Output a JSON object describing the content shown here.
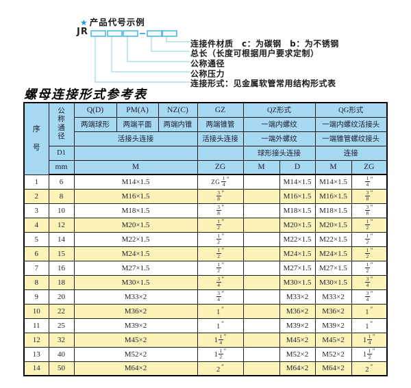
{
  "colors": {
    "header_blue": "#a8d9f2",
    "row_yellow": "#fbf3b8",
    "line_cyan": "#9bd7e8",
    "box_cyan": "#45b3e0",
    "star_blue": "#1e9ad6",
    "ink": "#1c1c30"
  },
  "diagram": {
    "star": "★",
    "heading": "产品代号示例",
    "prefix": "JR",
    "labels": [
      "连接件材质　c：为碳钢　b：为不锈钢",
      "总长（长度可根据用户要求定制）",
      "公称通径",
      "公称压力",
      "连接形式：见金属软管常用结构形式表"
    ]
  },
  "table": {
    "title": "螺母连接形式参考表",
    "header": {
      "seq": "序号",
      "dn": "公称通径",
      "d1": "D1",
      "mm": "mm",
      "forms": {
        "q": "Q(D)",
        "pm": "PM(A)",
        "nz": "NZ(C)",
        "gz": "GZ",
        "qz": "QZ形式",
        "qg": "QG形式"
      },
      "subs": {
        "q": "两端球形",
        "pm": "两端平面",
        "nz": "两端内锥",
        "gz": "两端锥管",
        "qz1": "一端内螺纹",
        "qg1": "一端内螺纹活接头"
      },
      "row3": {
        "union": "活接头连接",
        "gz": "活接头连接",
        "qz2": "一端外螺纹",
        "qg2": "一端锥管螺纹接头"
      },
      "row4": {
        "qz3": "球形接头连接",
        "qg3": "连接"
      },
      "row5": {
        "m1": "M",
        "zg1": "ZG",
        "m2": "M",
        "d": "D",
        "m3": "M",
        "zg2": "ZG"
      }
    },
    "rows": [
      {
        "no": "1",
        "dn": "6",
        "m": "M14×1.5",
        "gz": "ZG 1/4″",
        "qz_m": "",
        "qz_d": "M14×1.5",
        "qg_m": "M14×1.5",
        "qg_zg": "1/4″"
      },
      {
        "no": "2",
        "dn": "8",
        "m": "M16×1.5",
        "gz": "3/8″",
        "qz_m": "",
        "qz_d": "M16×1.5",
        "qg_m": "M16×1.5",
        "qg_zg": "3/8″"
      },
      {
        "no": "3",
        "dn": "10",
        "m": "M18×1.5",
        "gz": "3/8″",
        "qz_m": "",
        "qz_d": "M18×1.5",
        "qg_m": "M18×1.5",
        "qg_zg": "3/8″"
      },
      {
        "no": "4",
        "dn": "12",
        "m": "M20×1.5",
        "gz": "1/2″",
        "qz_m": "",
        "qz_d": "M20×1.5",
        "qg_m": "M20×1.5",
        "qg_zg": "1/2″"
      },
      {
        "no": "5",
        "dn": "14",
        "m": "M22×1.5",
        "gz": "1/2″",
        "qz_m": "",
        "qz_d": "M22×1.5",
        "qg_m": "M22×1.5",
        "qg_zg": "1/2″"
      },
      {
        "no": "6",
        "dn": "15",
        "m": "M24×1.5",
        "gz": "1/2″",
        "qz_m": "",
        "qz_d": "M24×1.5",
        "qg_m": "M24×1.5",
        "qg_zg": "1/2″"
      },
      {
        "no": "7",
        "dn": "16",
        "m": "M27×1.5",
        "gz": "1/2″",
        "qz_m": "",
        "qz_d": "M27×1.5",
        "qg_m": "M27×1.5",
        "qg_zg": "1/2″"
      },
      {
        "no": "8",
        "dn": "18",
        "m": "M30×1.5",
        "gz": "3/4″",
        "qz_m": "",
        "qz_d": "M30×1.5",
        "qg_m": "M30×1.5",
        "qg_zg": "3/4″"
      },
      {
        "no": "9",
        "dn": "20",
        "m": "M33×2",
        "gz": "3/4″",
        "qz_m": "",
        "qz_d": "M33×2",
        "qg_m": "M33×2",
        "qg_zg": "3/4″"
      },
      {
        "no": "10",
        "dn": "22",
        "m": "M36×2",
        "gz": "1″",
        "qz_m": "",
        "qz_d": "M36×2",
        "qg_m": "M36×2",
        "qg_zg": "1″"
      },
      {
        "no": "11",
        "dn": "25",
        "m": "M39×2",
        "gz": "1″",
        "qz_m": "",
        "qz_d": "M39×2",
        "qg_m": "M39×2",
        "qg_zg": "1″"
      },
      {
        "no": "12",
        "dn": "32",
        "m": "M45×2",
        "gz": "1 1/4″",
        "qz_m": "",
        "qz_d": "M45×2",
        "qg_m": "M45×2",
        "qg_zg": "1 1/4″"
      },
      {
        "no": "13",
        "dn": "40",
        "m": "M52×2",
        "gz": "1 1/2″",
        "qz_m": "",
        "qz_d": "M52×2",
        "qg_m": "M52×2",
        "qg_zg": "1 1/2″"
      },
      {
        "no": "14",
        "dn": "50",
        "m": "M64×2",
        "gz": "2″",
        "qz_m": "",
        "qz_d": "M64×2",
        "qg_m": "M64×2",
        "qg_zg": "2″"
      }
    ]
  }
}
